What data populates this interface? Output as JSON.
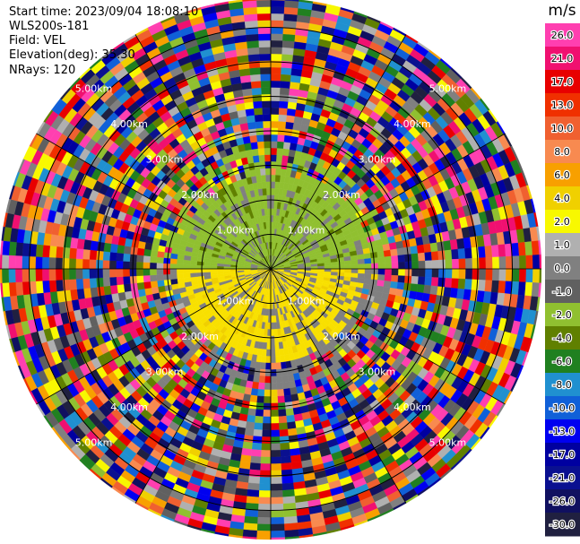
{
  "header": {
    "start_time": "Start time: 2023/09/04 18:08:10",
    "instrument": "WLS200s-181",
    "field": "Field: VEL",
    "elevation": "Elevation(deg): 35.30",
    "nrays": "NRays: 120"
  },
  "chart_data": {
    "type": "heatmap",
    "projection": "polar PPI",
    "field": "VEL",
    "units": "m/s",
    "nrays": 120,
    "range_ring_labels": [
      "1.00km",
      "2.00km",
      "3.00km",
      "4.00km",
      "5.00km"
    ],
    "spoke_count": 12,
    "colorbar": {
      "title": "m/s",
      "ticks": [
        "26.0",
        "21.0",
        "17.0",
        "13.0",
        "10.0",
        "8.0",
        "6.0",
        "4.0",
        "2.0",
        "1.0",
        "0.0",
        "-1.0",
        "-2.0",
        "-4.0",
        "-6.0",
        "-8.0",
        "-10.0",
        "-13.0",
        "-17.0",
        "-21.0",
        "-26.0",
        "-30.0"
      ],
      "colors": [
        "#ff3fb0",
        "#f01070",
        "#e80000",
        "#f03000",
        "#f06030",
        "#f88a50",
        "#f8a000",
        "#f0d000",
        "#f8f800",
        "#b0b0b0",
        "#808080",
        "#606060",
        "#90c030",
        "#608000",
        "#208020",
        "#2090d0",
        "#1060d8",
        "#0000f0",
        "#0000a0",
        "#0a1090",
        "#101060",
        "#202040"
      ]
    },
    "near_field": {
      "upper_half_color": "#90c030",
      "lower_half_color": "#f8e000",
      "inner_range_km": 2.7
    }
  }
}
